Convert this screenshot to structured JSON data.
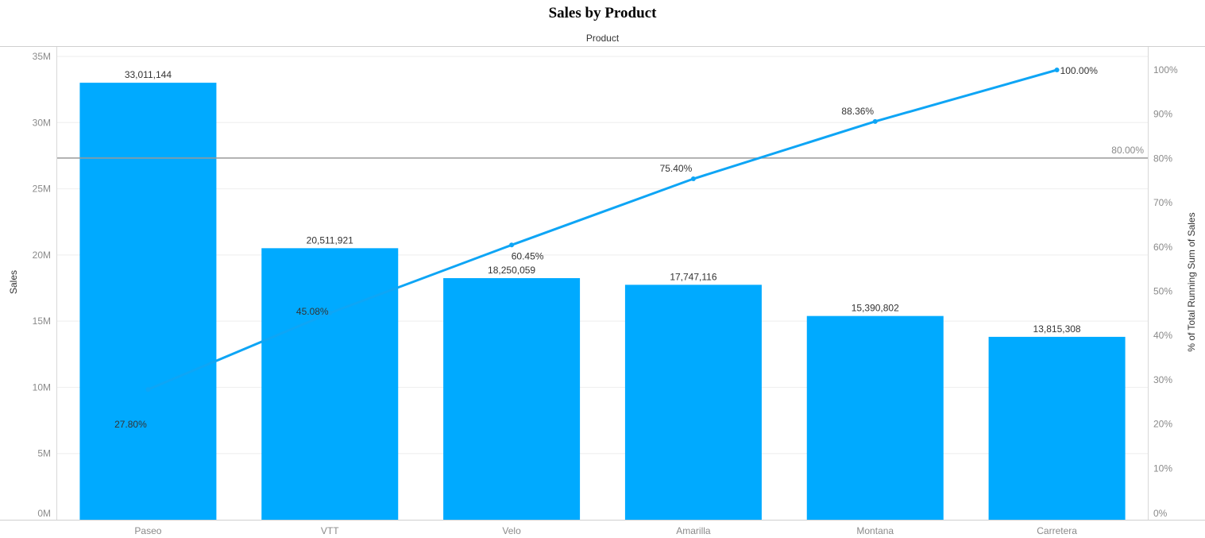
{
  "chart_data": {
    "type": "bar",
    "title": "Sales by Product",
    "x_header": "Product",
    "ylabel": "Sales",
    "y2label": "% of Total Running Sum of Sales",
    "ylim": [
      0,
      35000000
    ],
    "y2lim": [
      0,
      100
    ],
    "y_ticks": [
      "0M",
      "5M",
      "10M",
      "15M",
      "20M",
      "25M",
      "30M",
      "35M"
    ],
    "y2_ticks": [
      "0%",
      "10%",
      "20%",
      "30%",
      "40%",
      "50%",
      "60%",
      "70%",
      "80%",
      "90%",
      "100%"
    ],
    "categories": [
      "Paseo",
      "VTT",
      "Velo",
      "Amarilla",
      "Montana",
      "Carretera"
    ],
    "series": [
      {
        "type": "bar",
        "axis": "left",
        "values": [
          33011144,
          20511921,
          18250059,
          17747116,
          15390802,
          13815308
        ],
        "labels": [
          "33,011,144",
          "20,511,921",
          "18,250,059",
          "17,747,116",
          "15,390,802",
          "13,815,308"
        ]
      },
      {
        "type": "line",
        "axis": "right",
        "values": [
          27.8,
          45.08,
          60.45,
          75.4,
          88.36,
          100.0
        ],
        "labels": [
          "27.80%",
          "45.08%",
          "60.45%",
          "75.40%",
          "88.36%",
          "100.00%"
        ]
      }
    ],
    "reference_line": {
      "axis": "right",
      "value": 80,
      "label": "80.00%"
    },
    "grid": true,
    "colors": {
      "bar": "#00aaff",
      "line": "#0ea5f5",
      "reference": "#a0a0a0"
    }
  }
}
